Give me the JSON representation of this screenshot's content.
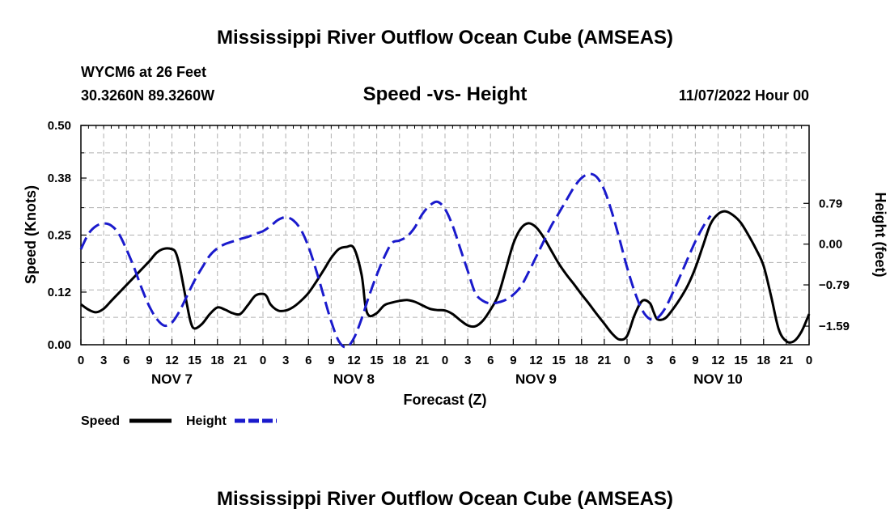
{
  "title": "Mississippi River Outflow Ocean Cube (AMSEAS)",
  "footer_title": "Mississippi River Outflow Ocean Cube (AMSEAS)",
  "station": "WYCM6 at 26 Feet",
  "location": "30.3260N  89.3260W",
  "subtitle": "Speed -vs- Height",
  "date_label": "11/07/2022 Hour 00",
  "chart_data": {
    "type": "line",
    "title": "Speed -vs- Height",
    "xlabel": "Forecast (Z)",
    "ylabel_left": "Speed (Knots)",
    "ylabel_right": "Height (feet)",
    "x_range_hours": [
      0,
      96
    ],
    "x_tick_step_hours": 3,
    "x_tick_labels": [
      "0",
      "3",
      "6",
      "9",
      "12",
      "15",
      "18",
      "21",
      "0",
      "3",
      "6",
      "9",
      "12",
      "15",
      "18",
      "21",
      "0",
      "3",
      "6",
      "9",
      "12",
      "15",
      "18",
      "21",
      "0",
      "3",
      "6",
      "9",
      "12",
      "15",
      "18",
      "21",
      "0"
    ],
    "day_labels": [
      {
        "label": "NOV 7",
        "hour": 12
      },
      {
        "label": "NOV 8",
        "hour": 36
      },
      {
        "label": "NOV 9",
        "hour": 60
      },
      {
        "label": "NOV 10",
        "hour": 84
      }
    ],
    "ylim_left": [
      0.0,
      0.5
    ],
    "yticks_left": [
      0.0,
      0.12,
      0.25,
      0.38,
      0.5
    ],
    "ytick_labels_left": [
      "0.00",
      "0.12",
      "0.25",
      "0.38",
      "0.50"
    ],
    "ylim_right": [
      -1.95,
      2.3
    ],
    "yticks_right": [
      -1.59,
      -0.79,
      0.0,
      0.79
    ],
    "ytick_labels_right": [
      "−1.59",
      "−0.79",
      "0.00",
      "0.79"
    ],
    "grid": true,
    "legend_position": "bottom-left",
    "series": [
      {
        "name": "Speed",
        "axis": "left",
        "color": "#000000",
        "dash": "solid",
        "points": [
          [
            0,
            0.092
          ],
          [
            1,
            0.08
          ],
          [
            2,
            0.074
          ],
          [
            3,
            0.082
          ],
          [
            4,
            0.1
          ],
          [
            5,
            0.118
          ],
          [
            6,
            0.136
          ],
          [
            7,
            0.154
          ],
          [
            8,
            0.172
          ],
          [
            9,
            0.19
          ],
          [
            10,
            0.21
          ],
          [
            11,
            0.219
          ],
          [
            12,
            0.218
          ],
          [
            12.5,
            0.21
          ],
          [
            13,
            0.18
          ],
          [
            14,
            0.09
          ],
          [
            14.5,
            0.05
          ],
          [
            15,
            0.037
          ],
          [
            16,
            0.048
          ],
          [
            17,
            0.07
          ],
          [
            18,
            0.085
          ],
          [
            19,
            0.08
          ],
          [
            20,
            0.072
          ],
          [
            21,
            0.07
          ],
          [
            22,
            0.09
          ],
          [
            23,
            0.112
          ],
          [
            24,
            0.116
          ],
          [
            24.5,
            0.11
          ],
          [
            25,
            0.092
          ],
          [
            26,
            0.078
          ],
          [
            27,
            0.078
          ],
          [
            28,
            0.086
          ],
          [
            29,
            0.1
          ],
          [
            30,
            0.118
          ],
          [
            31,
            0.143
          ],
          [
            32,
            0.17
          ],
          [
            33,
            0.198
          ],
          [
            34,
            0.218
          ],
          [
            35,
            0.223
          ],
          [
            36,
            0.22
          ],
          [
            37,
            0.16
          ],
          [
            37.5,
            0.09
          ],
          [
            38,
            0.066
          ],
          [
            39,
            0.072
          ],
          [
            40,
            0.09
          ],
          [
            41,
            0.096
          ],
          [
            42,
            0.1
          ],
          [
            43,
            0.102
          ],
          [
            44,
            0.098
          ],
          [
            45,
            0.09
          ],
          [
            46,
            0.082
          ],
          [
            47,
            0.079
          ],
          [
            48,
            0.078
          ],
          [
            49,
            0.07
          ],
          [
            50,
            0.056
          ],
          [
            51,
            0.044
          ],
          [
            52,
            0.042
          ],
          [
            53,
            0.055
          ],
          [
            54,
            0.08
          ],
          [
            55,
            0.112
          ],
          [
            56,
            0.17
          ],
          [
            57,
            0.23
          ],
          [
            58,
            0.265
          ],
          [
            59,
            0.277
          ],
          [
            60,
            0.268
          ],
          [
            61,
            0.245
          ],
          [
            62,
            0.215
          ],
          [
            63,
            0.185
          ],
          [
            64,
            0.16
          ],
          [
            65,
            0.138
          ],
          [
            66,
            0.115
          ],
          [
            67,
            0.093
          ],
          [
            68,
            0.07
          ],
          [
            69,
            0.048
          ],
          [
            70,
            0.026
          ],
          [
            71,
            0.012
          ],
          [
            72,
            0.02
          ],
          [
            73,
            0.068
          ],
          [
            74,
            0.1
          ],
          [
            75,
            0.095
          ],
          [
            75.5,
            0.075
          ],
          [
            76,
            0.058
          ],
          [
            77,
            0.06
          ],
          [
            78,
            0.08
          ],
          [
            79,
            0.105
          ],
          [
            80,
            0.135
          ],
          [
            81,
            0.175
          ],
          [
            82,
            0.225
          ],
          [
            83,
            0.275
          ],
          [
            84,
            0.298
          ],
          [
            85,
            0.304
          ],
          [
            86,
            0.295
          ],
          [
            87,
            0.278
          ],
          [
            88,
            0.25
          ],
          [
            89,
            0.218
          ],
          [
            90,
            0.18
          ],
          [
            91,
            0.11
          ],
          [
            92,
            0.035
          ],
          [
            93,
            0.008
          ],
          [
            94,
            0.008
          ],
          [
            95,
            0.03
          ],
          [
            96,
            0.07
          ]
        ]
      },
      {
        "name": "Height",
        "axis": "right",
        "color": "#1a1acc",
        "dash": "dashed",
        "points": [
          [
            0,
            -0.1
          ],
          [
            1,
            0.2
          ],
          [
            2,
            0.35
          ],
          [
            3,
            0.4
          ],
          [
            4,
            0.36
          ],
          [
            5,
            0.2
          ],
          [
            6,
            -0.1
          ],
          [
            7,
            -0.45
          ],
          [
            8,
            -0.85
          ],
          [
            9,
            -1.2
          ],
          [
            10,
            -1.45
          ],
          [
            11,
            -1.58
          ],
          [
            12,
            -1.52
          ],
          [
            13,
            -1.3
          ],
          [
            14,
            -1.0
          ],
          [
            15,
            -0.7
          ],
          [
            16,
            -0.45
          ],
          [
            17,
            -0.22
          ],
          [
            18,
            -0.08
          ],
          [
            19,
            0.0
          ],
          [
            20,
            0.05
          ],
          [
            21,
            0.1
          ],
          [
            22,
            0.14
          ],
          [
            23,
            0.2
          ],
          [
            24,
            0.25
          ],
          [
            25,
            0.35
          ],
          [
            26,
            0.47
          ],
          [
            27,
            0.52
          ],
          [
            28,
            0.46
          ],
          [
            29,
            0.28
          ],
          [
            30,
            -0.05
          ],
          [
            31,
            -0.5
          ],
          [
            32,
            -1.0
          ],
          [
            33,
            -1.5
          ],
          [
            34,
            -1.88
          ],
          [
            35,
            -2.0
          ],
          [
            36,
            -1.82
          ],
          [
            37,
            -1.45
          ],
          [
            38,
            -1.0
          ],
          [
            39,
            -0.6
          ],
          [
            40,
            -0.25
          ],
          [
            41,
            0.02
          ],
          [
            42,
            0.07
          ],
          [
            43,
            0.15
          ],
          [
            44,
            0.32
          ],
          [
            45,
            0.58
          ],
          [
            46,
            0.75
          ],
          [
            47,
            0.82
          ],
          [
            48,
            0.68
          ],
          [
            49,
            0.36
          ],
          [
            50,
            -0.08
          ],
          [
            51,
            -0.52
          ],
          [
            52,
            -0.95
          ],
          [
            53,
            -1.1
          ],
          [
            54,
            -1.15
          ],
          [
            55,
            -1.13
          ],
          [
            56,
            -1.08
          ],
          [
            57,
            -0.98
          ],
          [
            58,
            -0.82
          ],
          [
            59,
            -0.55
          ],
          [
            60,
            -0.25
          ],
          [
            61,
            0.05
          ],
          [
            62,
            0.35
          ],
          [
            63,
            0.6
          ],
          [
            64,
            0.85
          ],
          [
            65,
            1.1
          ],
          [
            66,
            1.28
          ],
          [
            67,
            1.36
          ],
          [
            68,
            1.3
          ],
          [
            69,
            1.05
          ],
          [
            70,
            0.62
          ],
          [
            71,
            0.1
          ],
          [
            72,
            -0.45
          ],
          [
            73,
            -0.92
          ],
          [
            74,
            -1.28
          ],
          [
            75,
            -1.45
          ],
          [
            76,
            -1.43
          ],
          [
            77,
            -1.25
          ],
          [
            78,
            -0.95
          ],
          [
            79,
            -0.62
          ],
          [
            80,
            -0.28
          ],
          [
            81,
            0.05
          ],
          [
            82,
            0.33
          ],
          [
            83,
            0.55
          ]
        ]
      }
    ]
  },
  "legend": {
    "items": [
      {
        "label": "Speed",
        "color": "#000000",
        "dash": "solid"
      },
      {
        "label": "Height",
        "color": "#1a1acc",
        "dash": "dashed"
      }
    ]
  }
}
